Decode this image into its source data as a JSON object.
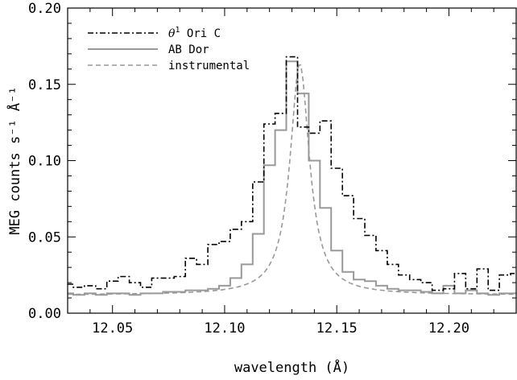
{
  "chart_data": {
    "type": "line",
    "xlabel": "wavelength (Å)",
    "ylabel": "MEG counts s⁻¹ Å⁻¹",
    "xlim": [
      12.03,
      12.23
    ],
    "ylim": [
      0.0,
      0.2
    ],
    "x_ticks": [
      12.05,
      12.1,
      12.15,
      12.2
    ],
    "x_tick_labels": [
      "12.05",
      "12.10",
      "12.15",
      "12.20"
    ],
    "y_ticks": [
      0.0,
      0.05,
      0.1,
      0.15,
      0.2
    ],
    "y_tick_labels": [
      "0.00",
      "0.05",
      "0.10",
      "0.15",
      "0.20"
    ],
    "legend_position": "top-left",
    "series": [
      {
        "name_parts": [
          "θ",
          "1",
          " Ori C"
        ],
        "style": "dash-dot",
        "color": "#000000",
        "render": "step",
        "x": [
          12.03,
          12.035,
          12.04,
          12.045,
          12.05,
          12.055,
          12.06,
          12.065,
          12.07,
          12.075,
          12.08,
          12.085,
          12.09,
          12.095,
          12.1,
          12.105,
          12.11,
          12.115,
          12.12,
          12.125,
          12.13,
          12.135,
          12.14,
          12.145,
          12.15,
          12.155,
          12.16,
          12.165,
          12.17,
          12.175,
          12.18,
          12.185,
          12.19,
          12.195,
          12.2,
          12.205,
          12.21,
          12.215,
          12.22,
          12.225,
          12.23
        ],
        "y": [
          0.019,
          0.017,
          0.018,
          0.016,
          0.021,
          0.024,
          0.02,
          0.017,
          0.023,
          0.023,
          0.024,
          0.036,
          0.032,
          0.045,
          0.047,
          0.055,
          0.06,
          0.086,
          0.124,
          0.131,
          0.168,
          0.122,
          0.118,
          0.126,
          0.095,
          0.077,
          0.062,
          0.051,
          0.041,
          0.032,
          0.025,
          0.022,
          0.02,
          0.015,
          0.016,
          0.026,
          0.016,
          0.029,
          0.015,
          0.025,
          0.026
        ]
      },
      {
        "name": "AB Dor",
        "style": "solid",
        "color": "#999999",
        "render": "step",
        "x": [
          12.03,
          12.035,
          12.04,
          12.045,
          12.05,
          12.055,
          12.06,
          12.065,
          12.07,
          12.075,
          12.08,
          12.085,
          12.09,
          12.095,
          12.1,
          12.105,
          12.11,
          12.115,
          12.12,
          12.125,
          12.13,
          12.135,
          12.14,
          12.145,
          12.15,
          12.155,
          12.16,
          12.165,
          12.17,
          12.175,
          12.18,
          12.185,
          12.19,
          12.195,
          12.2,
          12.205,
          12.21,
          12.215,
          12.22,
          12.225,
          12.23
        ],
        "y": [
          0.013,
          0.012,
          0.013,
          0.012,
          0.013,
          0.013,
          0.012,
          0.013,
          0.013,
          0.014,
          0.014,
          0.015,
          0.015,
          0.016,
          0.018,
          0.023,
          0.032,
          0.052,
          0.097,
          0.12,
          0.165,
          0.144,
          0.1,
          0.069,
          0.041,
          0.027,
          0.022,
          0.021,
          0.018,
          0.016,
          0.015,
          0.015,
          0.014,
          0.013,
          0.018,
          0.013,
          0.015,
          0.013,
          0.012,
          0.013,
          0.013
        ]
      },
      {
        "name": "instrumental",
        "style": "dashed",
        "color": "#999999",
        "render": "smooth",
        "profile": {
          "center": 12.1335,
          "peak": 0.152,
          "base": 0.012,
          "width": 0.0052
        }
      }
    ]
  }
}
